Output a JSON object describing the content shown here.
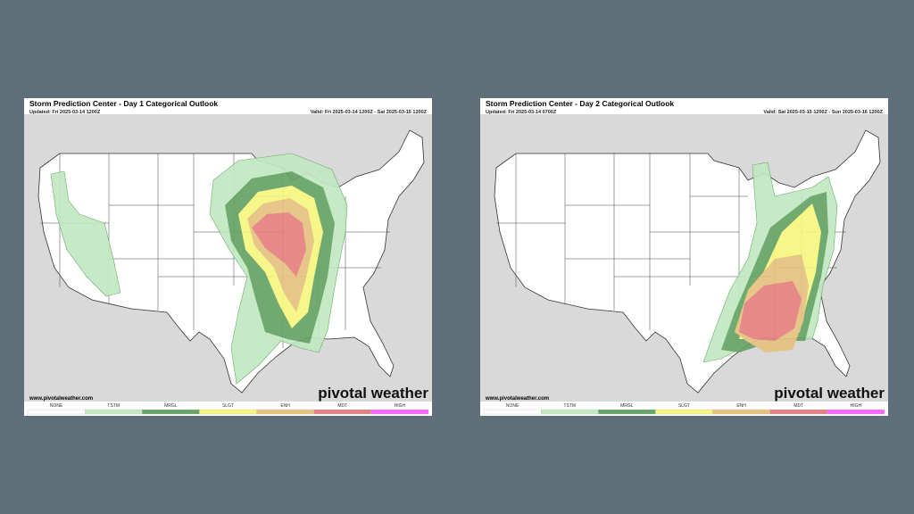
{
  "panels": [
    {
      "title": "Storm Prediction Center - Day 1 Categorical Outlook",
      "updated": "Updated: Fri 2025-03-14 1200Z",
      "valid": "Valid: Fri 2025-03-14 1200Z - Sat 2025-03-15 1200Z",
      "website": "www.pivotalweather.com",
      "brand": "pivotal weather"
    },
    {
      "title": "Storm Prediction Center - Day 2 Categorical Outlook",
      "updated": "Updated: Fri 2025-03-14 0700Z",
      "valid": "Valid: Sat 2025-03-15 1200Z - Sun 2025-03-16 1200Z",
      "website": "www.pivotalweather.com",
      "brand": "pivotal weather"
    }
  ],
  "legend": [
    {
      "label": "NONE",
      "color": "#ffffff"
    },
    {
      "label": "TSTM",
      "color": "#c1e9c1"
    },
    {
      "label": "MRGL",
      "color": "#66a366"
    },
    {
      "label": "SLGT",
      "color": "#f6f67f"
    },
    {
      "label": "ENH",
      "color": "#e6c27f"
    },
    {
      "label": "MDT",
      "color": "#e67f7f"
    },
    {
      "label": "HIGH",
      "color": "#ff66ff"
    }
  ]
}
